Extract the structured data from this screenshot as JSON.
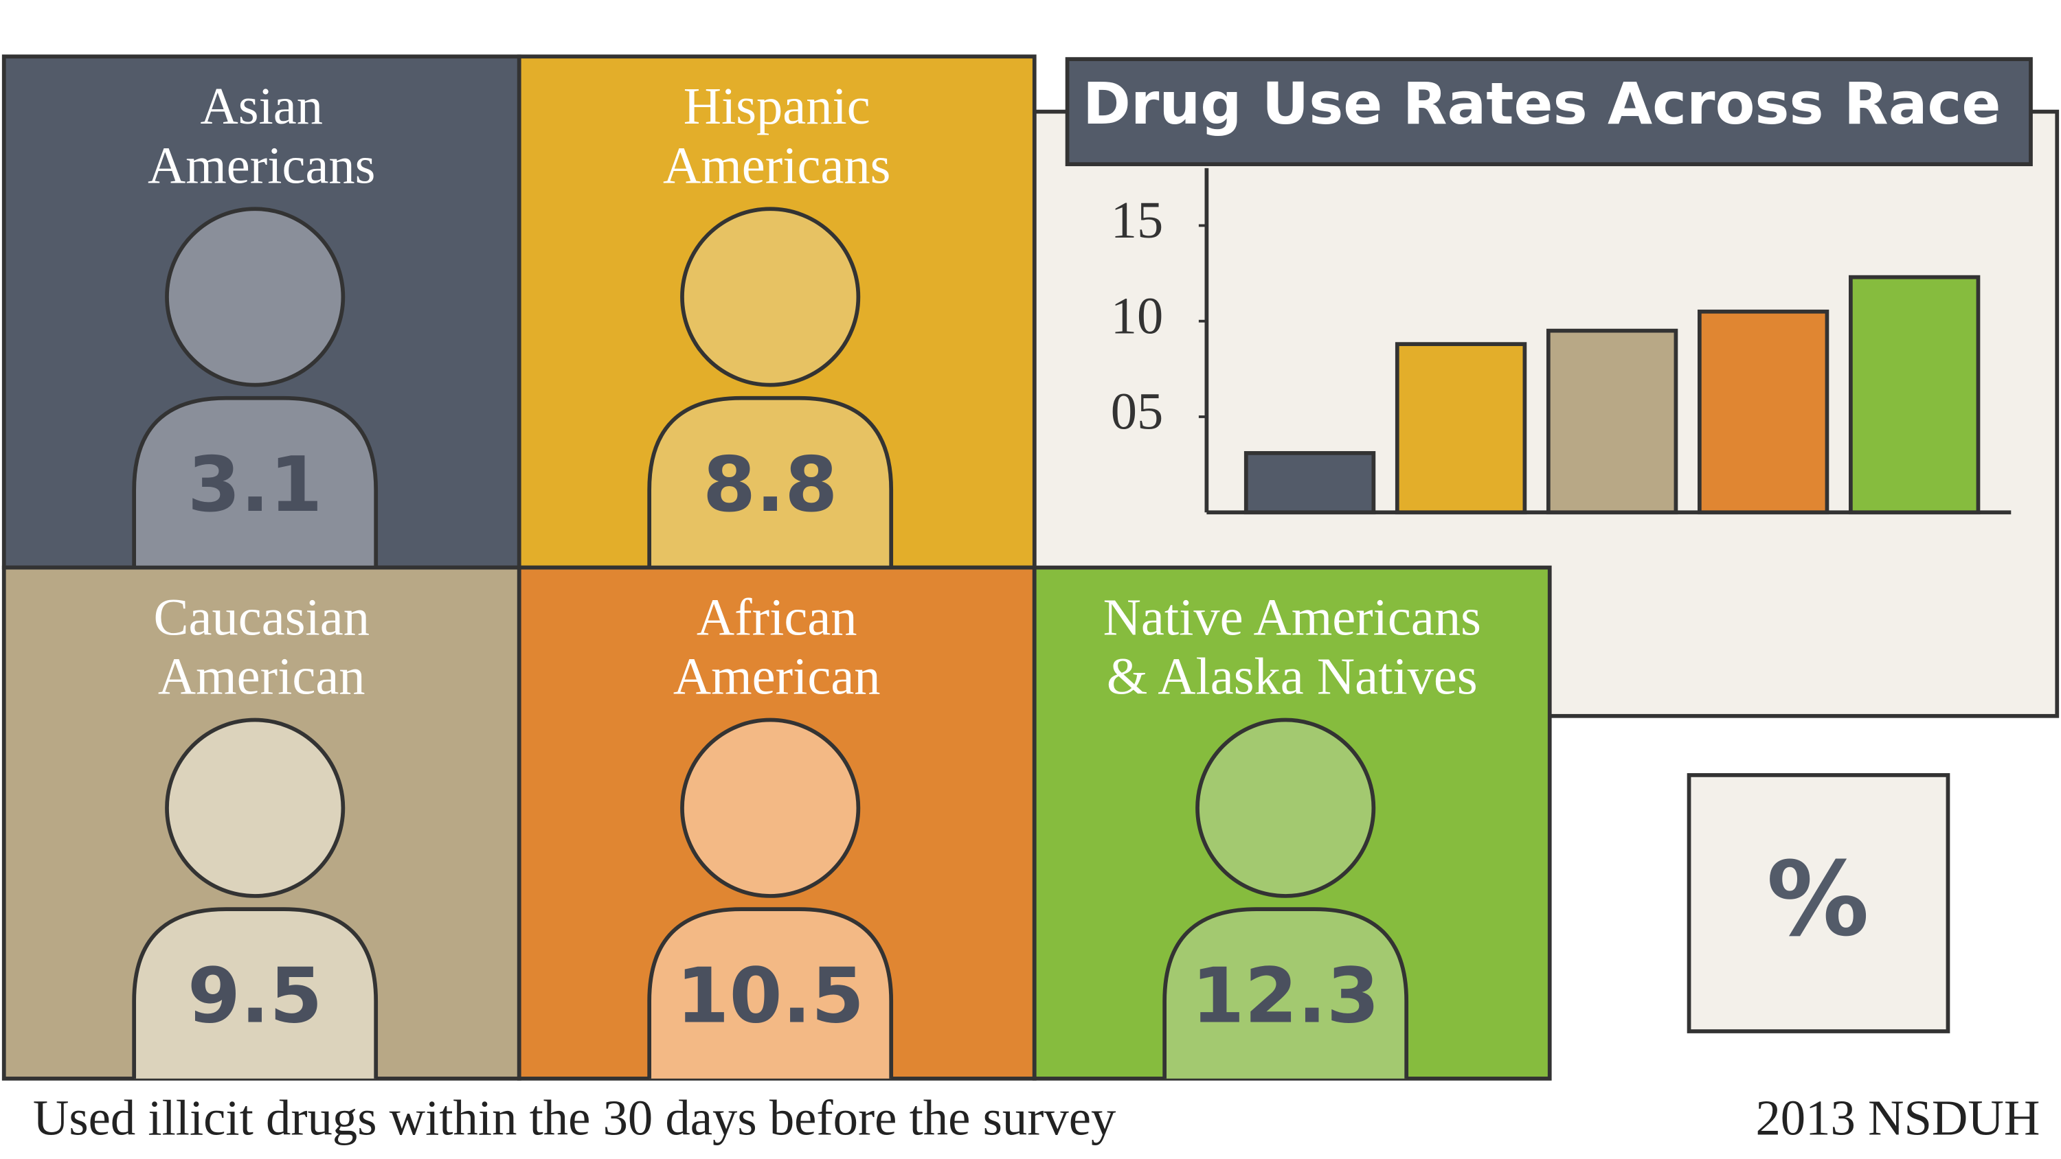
{
  "chart_data": {
    "type": "bar",
    "title": "Drug Use Rates Across Race",
    "categories": [
      [
        "Asian",
        "Americans"
      ],
      [
        "Hispanic",
        "Americans"
      ],
      [
        "Caucasian",
        "American"
      ],
      [
        "African",
        "American"
      ],
      [
        "Native Americans",
        "& Alaska Natives"
      ]
    ],
    "values": [
      3.1,
      8.8,
      9.5,
      10.5,
      12.3
    ],
    "colors": [
      "#535b69",
      "#e3ae2a",
      "#b8a886",
      "#e08632",
      "#86bc3e"
    ],
    "figure_colors": [
      "#8a8f9a",
      "#e7c263",
      "#dcd3bc",
      "#f3b985",
      "#a3c970"
    ],
    "ylim": [
      0,
      18
    ],
    "yticks": [
      {
        "value": 5,
        "label": "05"
      },
      10,
      15
    ],
    "unit": "%",
    "note": "Used illicit drugs within the 30 days before the survey",
    "source": "2013 NSDUH"
  }
}
